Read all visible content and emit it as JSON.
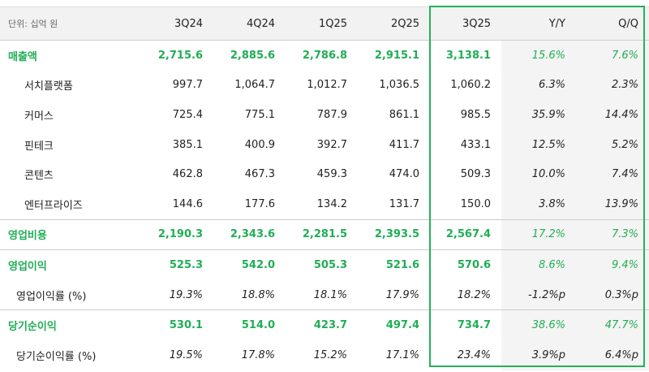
{
  "table": {
    "unit": "단위: 십억 원",
    "columns": [
      "3Q24",
      "4Q24",
      "1Q25",
      "2Q25",
      "3Q25",
      "Y/Y",
      "Q/Q"
    ],
    "rows": [
      {
        "label": "매출액",
        "cells": [
          "2,715.6",
          "2,885.6",
          "2,786.8",
          "2,915.1",
          "3,138.1",
          "15.6%",
          "7.6%"
        ]
      },
      {
        "label": "서치플랫폼",
        "cells": [
          "997.7",
          "1,064.7",
          "1,012.7",
          "1,036.5",
          "1,060.2",
          "6.3%",
          "2.3%"
        ]
      },
      {
        "label": "커머스",
        "cells": [
          "725.4",
          "775.1",
          "787.9",
          "861.1",
          "985.5",
          "35.9%",
          "14.4%"
        ]
      },
      {
        "label": "핀테크",
        "cells": [
          "385.1",
          "400.9",
          "392.7",
          "411.7",
          "433.1",
          "12.5%",
          "5.2%"
        ]
      },
      {
        "label": "콘텐츠",
        "cells": [
          "462.8",
          "467.3",
          "459.3",
          "474.0",
          "509.3",
          "10.0%",
          "7.4%"
        ]
      },
      {
        "label": "엔터프라이즈",
        "cells": [
          "144.6",
          "177.6",
          "134.2",
          "131.7",
          "150.0",
          "3.8%",
          "13.9%"
        ]
      },
      {
        "label": "영업비용",
        "cells": [
          "2,190.3",
          "2,343.6",
          "2,281.5",
          "2,393.5",
          "2,567.4",
          "17.2%",
          "7.3%"
        ]
      },
      {
        "label": "영업이익",
        "cells": [
          "525.3",
          "542.0",
          "505.3",
          "521.6",
          "570.6",
          "8.6%",
          "9.4%"
        ]
      },
      {
        "label": "영업이익률 (%)",
        "cells": [
          "19.3%",
          "18.8%",
          "18.1%",
          "17.9%",
          "18.2%",
          "-1.2%p",
          "0.3%p"
        ]
      },
      {
        "label": "당기순이익",
        "cells": [
          "530.1",
          "514.0",
          "423.7",
          "497.4",
          "734.7",
          "38.6%",
          "47.7%"
        ]
      },
      {
        "label": "당기순이익률 (%)",
        "cells": [
          "19.5%",
          "17.8%",
          "15.2%",
          "17.1%",
          "23.4%",
          "3.9%p",
          "6.4%p"
        ]
      }
    ]
  }
}
